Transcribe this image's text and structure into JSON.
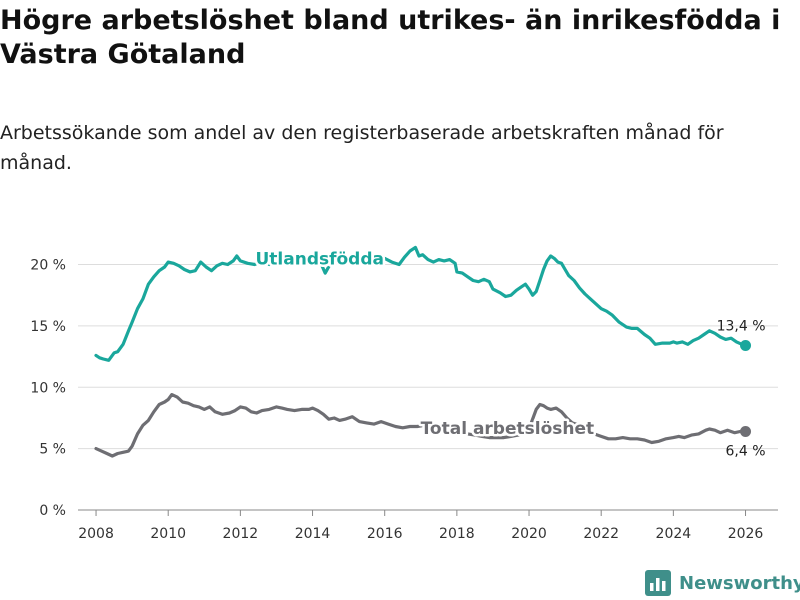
{
  "title": "Högre arbetslöshet bland utrikes- än inrikesfödda i Västra Götaland",
  "subtitle": "Arbetssökande som andel av den registerbaserade arbetskraften månad för månad.",
  "brand": "Newsworthy",
  "chart_data": {
    "type": "line",
    "title": "Högre arbetslöshet bland utrikes- än inrikesfödda i Västra Götaland",
    "xlabel": "",
    "ylabel": "",
    "xlim": [
      2007.5,
      2026.9
    ],
    "ylim": [
      0,
      22
    ],
    "y_ticks": [
      0,
      5,
      10,
      15,
      20
    ],
    "y_tick_labels": [
      "0 %",
      "5 %",
      "10 %",
      "15 %",
      "20 %"
    ],
    "x_ticks": [
      2008,
      2010,
      2012,
      2014,
      2016,
      2018,
      2020,
      2022,
      2024,
      2026
    ],
    "x_tick_labels": [
      "2008",
      "2010",
      "2012",
      "2014",
      "2016",
      "2018",
      "2020",
      "2022",
      "2024",
      "2026"
    ],
    "grid": true,
    "series": [
      {
        "name": "Utlandsfödda",
        "color": "#1aa79c",
        "end_label": "13,4 %",
        "x": [
          2008.0,
          2008.1,
          2008.2,
          2008.35,
          2008.5,
          2008.6,
          2008.75,
          2008.9,
          2009.0,
          2009.15,
          2009.3,
          2009.45,
          2009.6,
          2009.75,
          2009.9,
          2010.0,
          2010.15,
          2010.3,
          2010.45,
          2010.6,
          2010.75,
          2010.9,
          2011.05,
          2011.2,
          2011.35,
          2011.5,
          2011.65,
          2011.8,
          2011.9,
          2012.0,
          2012.2,
          2012.4,
          2012.6,
          2012.8,
          2013.0,
          2013.2,
          2013.4,
          2013.6,
          2013.8,
          2014.0,
          2014.2,
          2014.35,
          2014.5,
          2014.65,
          2014.8,
          2015.0,
          2015.2,
          2015.4,
          2015.6,
          2015.8,
          2016.0,
          2016.2,
          2016.4,
          2016.55,
          2016.7,
          2016.85,
          2016.95,
          2017.05,
          2017.2,
          2017.35,
          2017.5,
          2017.65,
          2017.8,
          2017.95,
          2018.0,
          2018.15,
          2018.3,
          2018.45,
          2018.6,
          2018.75,
          2018.9,
          2019.0,
          2019.2,
          2019.35,
          2019.5,
          2019.65,
          2019.8,
          2019.9,
          2020.0,
          2020.1,
          2020.2,
          2020.3,
          2020.4,
          2020.5,
          2020.6,
          2020.7,
          2020.8,
          2020.9,
          2021.0,
          2021.1,
          2021.25,
          2021.4,
          2021.55,
          2021.7,
          2021.85,
          2022.0,
          2022.15,
          2022.3,
          2022.5,
          2022.7,
          2022.85,
          2023.0,
          2023.2,
          2023.35,
          2023.5,
          2023.7,
          2023.9,
          2024.0,
          2024.1,
          2024.25,
          2024.4,
          2024.55,
          2024.7,
          2024.85,
          2025.0,
          2025.15,
          2025.3,
          2025.45,
          2025.6,
          2025.75,
          2025.9,
          2026.0
        ],
        "y": [
          12.6,
          12.4,
          12.3,
          12.2,
          12.8,
          12.9,
          13.5,
          14.6,
          15.3,
          16.4,
          17.2,
          18.4,
          19.0,
          19.5,
          19.8,
          20.2,
          20.1,
          19.9,
          19.6,
          19.4,
          19.5,
          20.2,
          19.8,
          19.5,
          19.9,
          20.1,
          20.0,
          20.3,
          20.7,
          20.3,
          20.1,
          20.0,
          20.3,
          20.0,
          20.2,
          20.4,
          20.1,
          20.3,
          20.2,
          20.2,
          20.3,
          19.3,
          20.1,
          20.5,
          20.3,
          20.2,
          20.4,
          20.3,
          20.5,
          20.1,
          20.5,
          20.2,
          20.0,
          20.6,
          21.1,
          21.4,
          20.7,
          20.8,
          20.4,
          20.2,
          20.4,
          20.3,
          20.4,
          20.1,
          19.4,
          19.3,
          19.0,
          18.7,
          18.6,
          18.8,
          18.6,
          18.0,
          17.7,
          17.4,
          17.5,
          17.9,
          18.2,
          18.4,
          18.0,
          17.5,
          17.8,
          18.7,
          19.6,
          20.3,
          20.7,
          20.5,
          20.2,
          20.1,
          19.6,
          19.1,
          18.7,
          18.1,
          17.6,
          17.2,
          16.8,
          16.4,
          16.2,
          15.9,
          15.3,
          14.9,
          14.8,
          14.8,
          14.3,
          14.0,
          13.5,
          13.6,
          13.6,
          13.7,
          13.6,
          13.7,
          13.5,
          13.8,
          14.0,
          14.3,
          14.6,
          14.4,
          14.1,
          13.9,
          14.0,
          13.7,
          13.5,
          13.4
        ]
      },
      {
        "name": "Total arbetslöshet",
        "color": "#6e6e73",
        "end_label": "6,4 %",
        "x": [
          2008.0,
          2008.15,
          2008.3,
          2008.45,
          2008.6,
          2008.75,
          2008.9,
          2009.0,
          2009.15,
          2009.3,
          2009.45,
          2009.6,
          2009.75,
          2009.9,
          2010.0,
          2010.1,
          2010.25,
          2010.4,
          2010.55,
          2010.7,
          2010.85,
          2011.0,
          2011.15,
          2011.3,
          2011.5,
          2011.7,
          2011.85,
          2012.0,
          2012.15,
          2012.3,
          2012.45,
          2012.6,
          2012.8,
          2013.0,
          2013.15,
          2013.3,
          2013.5,
          2013.7,
          2013.9,
          2014.0,
          2014.15,
          2014.3,
          2014.45,
          2014.6,
          2014.75,
          2014.9,
          2015.1,
          2015.3,
          2015.5,
          2015.7,
          2015.9,
          2016.1,
          2016.3,
          2016.5,
          2016.7,
          2016.9,
          2017.1,
          2017.3,
          2017.5,
          2017.7,
          2017.9,
          2018.1,
          2018.3,
          2018.5,
          2018.7,
          2018.9,
          2019.1,
          2019.3,
          2019.5,
          2019.7,
          2019.9,
          2020.0,
          2020.1,
          2020.2,
          2020.3,
          2020.4,
          2020.5,
          2020.6,
          2020.75,
          2020.9,
          2021.05,
          2021.2,
          2021.4,
          2021.6,
          2021.8,
          2022.0,
          2022.2,
          2022.4,
          2022.6,
          2022.8,
          2023.0,
          2023.2,
          2023.4,
          2023.6,
          2023.8,
          2024.0,
          2024.15,
          2024.3,
          2024.5,
          2024.7,
          2024.9,
          2025.0,
          2025.15,
          2025.3,
          2025.5,
          2025.7,
          2025.85,
          2026.0
        ],
        "y": [
          5.0,
          4.8,
          4.6,
          4.4,
          4.6,
          4.7,
          4.8,
          5.2,
          6.2,
          6.9,
          7.3,
          8.0,
          8.6,
          8.8,
          9.0,
          9.4,
          9.2,
          8.8,
          8.7,
          8.5,
          8.4,
          8.2,
          8.4,
          8.0,
          7.8,
          7.9,
          8.1,
          8.4,
          8.3,
          8.0,
          7.9,
          8.1,
          8.2,
          8.4,
          8.3,
          8.2,
          8.1,
          8.2,
          8.2,
          8.3,
          8.1,
          7.8,
          7.4,
          7.5,
          7.3,
          7.4,
          7.6,
          7.2,
          7.1,
          7.0,
          7.2,
          7.0,
          6.8,
          6.7,
          6.8,
          6.8,
          6.9,
          6.7,
          6.6,
          6.5,
          6.4,
          6.3,
          6.2,
          6.1,
          6.0,
          5.9,
          5.9,
          5.9,
          6.0,
          6.1,
          6.3,
          6.6,
          7.4,
          8.2,
          8.6,
          8.5,
          8.3,
          8.2,
          8.3,
          8.0,
          7.5,
          7.1,
          6.9,
          6.6,
          6.2,
          6.0,
          5.8,
          5.8,
          5.9,
          5.8,
          5.8,
          5.7,
          5.5,
          5.6,
          5.8,
          5.9,
          6.0,
          5.9,
          6.1,
          6.2,
          6.5,
          6.6,
          6.5,
          6.3,
          6.5,
          6.3,
          6.4,
          6.4
        ]
      }
    ],
    "annotations": [
      {
        "text": "Utlandsfödda",
        "series": "Utlandsfödda",
        "x": 2014.2,
        "y": 20.0
      },
      {
        "text": "Total arbetslöshet",
        "series": "Total arbetslöshet",
        "x": 2019.4,
        "y": 6.2
      }
    ]
  }
}
